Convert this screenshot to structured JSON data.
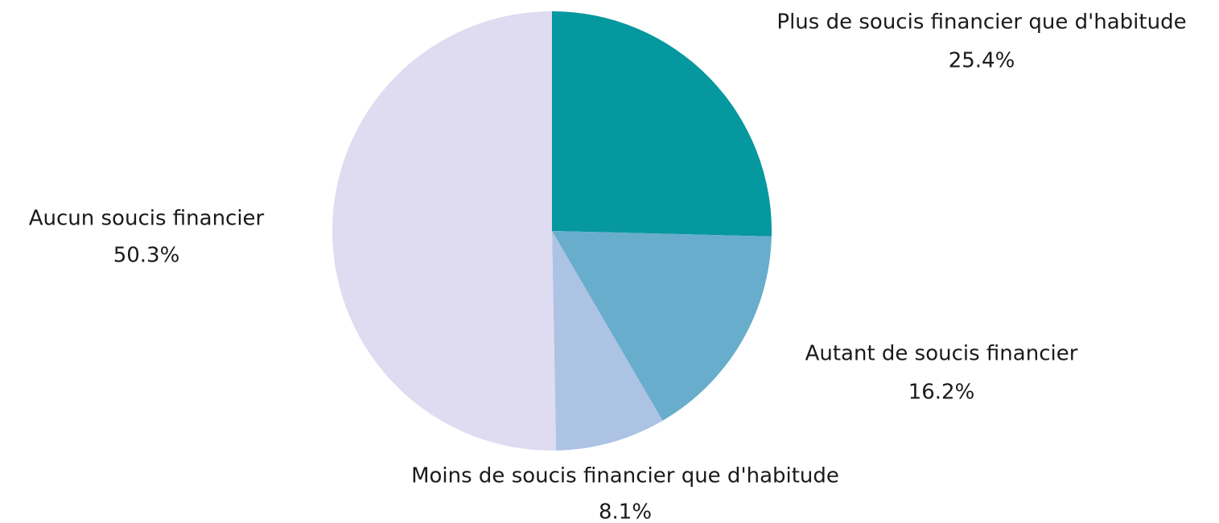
{
  "chart_data": {
    "type": "pie",
    "categories": [
      "Plus de soucis financier que d'habitude",
      "Autant de soucis financier",
      "Moins de soucis financier que d'habitude",
      "Aucun soucis financier"
    ],
    "values": [
      25.4,
      16.2,
      8.1,
      50.3
    ],
    "value_labels": [
      "25.4%",
      "16.2%",
      "8.1%",
      "50.3%"
    ],
    "colors": [
      "#05989e",
      "#68adcb",
      "#adc3e4",
      "#dfdbf1"
    ]
  }
}
